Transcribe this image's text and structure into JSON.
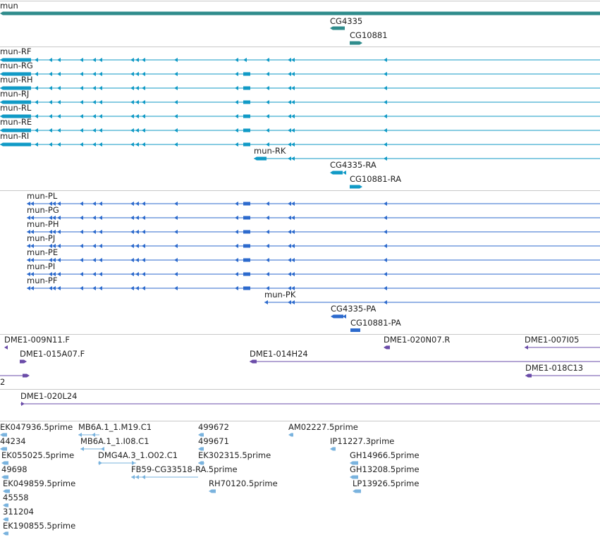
{
  "colors": {
    "gene": "#2f8c8c",
    "transcript": "#109ac6",
    "protein": "#2c6acd",
    "clone": "#6a4ba8",
    "est": "#7ab3de",
    "divider": "#c8c8c8",
    "backbone": "#5a5a5a"
  },
  "gene_track": [
    {
      "name": "mun",
      "strand": "-"
    },
    {
      "name": "CG4335",
      "strand": "-"
    },
    {
      "name": "CG10881",
      "strand": "+"
    }
  ],
  "transcript_track": [
    {
      "name": "mun-RF",
      "strand": "-"
    },
    {
      "name": "mun-RG",
      "strand": "-"
    },
    {
      "name": "mun-RH",
      "strand": "-"
    },
    {
      "name": "mun-RJ",
      "strand": "-"
    },
    {
      "name": "mun-RL",
      "strand": "-"
    },
    {
      "name": "mun-RE",
      "strand": "-"
    },
    {
      "name": "mun-RI",
      "strand": "-"
    },
    {
      "name": "mun-RK",
      "strand": "-"
    },
    {
      "name": "CG4335-RA",
      "strand": "-"
    },
    {
      "name": "CG10881-RA",
      "strand": "+"
    }
  ],
  "protein_track": [
    {
      "name": "mun-PL",
      "strand": "-"
    },
    {
      "name": "mun-PG",
      "strand": "-"
    },
    {
      "name": "mun-PH",
      "strand": "-"
    },
    {
      "name": "mun-PJ",
      "strand": "-"
    },
    {
      "name": "mun-PE",
      "strand": "-"
    },
    {
      "name": "mun-PI",
      "strand": "-"
    },
    {
      "name": "mun-PF",
      "strand": "-"
    },
    {
      "name": "mun-PK",
      "strand": "-"
    },
    {
      "name": "CG4335-PA",
      "strand": "-"
    },
    {
      "name": "CG10881-PA",
      "strand": "+"
    }
  ],
  "clone_track": [
    {
      "name": "DME1-009N11.F"
    },
    {
      "name": "DME1-015A07.F"
    },
    {
      "name": "DME1-014H24"
    },
    {
      "name": "DME1-020N07.R"
    },
    {
      "name": "DME1-007I05"
    },
    {
      "name": "DME1-018C13"
    },
    {
      "name": "2"
    }
  ],
  "bac_track": [
    {
      "name": "DME1-020L24"
    }
  ],
  "est_track": [
    {
      "name": "EK047936.5prime"
    },
    {
      "name": "44234"
    },
    {
      "name": "EK055025.5prime"
    },
    {
      "name": "49698"
    },
    {
      "name": "EK049859.5prime"
    },
    {
      "name": "45558"
    },
    {
      "name": "311204"
    },
    {
      "name": "EK190855.5prime"
    },
    {
      "name": "MB6A.1_1.M19.C1"
    },
    {
      "name": "MB6A.1_1.I08.C1"
    },
    {
      "name": "DMG4A.3_1.O02.C1"
    },
    {
      "name": "FB59-CG33518-RA.5prime"
    },
    {
      "name": "499672"
    },
    {
      "name": "499671"
    },
    {
      "name": "EK302315.5prime"
    },
    {
      "name": "RH70120.5prime"
    },
    {
      "name": "AM02227.5prime"
    },
    {
      "name": "IP11227.3prime"
    },
    {
      "name": "GH14966.5prime"
    },
    {
      "name": "GH13208.5prime"
    },
    {
      "name": "LP13926.5prime"
    }
  ]
}
